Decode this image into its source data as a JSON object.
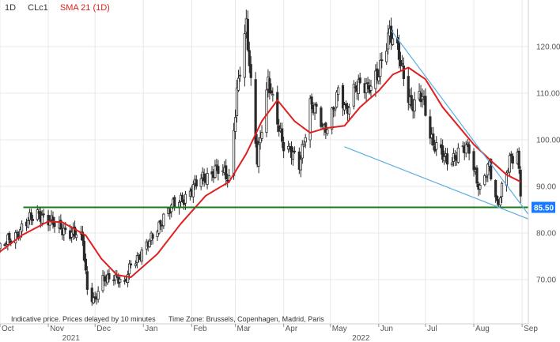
{
  "legend": {
    "interval": "1D",
    "symbol": "CLc1",
    "sma_label": "SMA 21 (1D)"
  },
  "footnote": {
    "delay": "Indicative price. Prices delayed by 10 minutes",
    "timezone": "Time Zone: Brussels, Copenhagen, Madrid, Paris"
  },
  "colors": {
    "up": "#2a2a2a",
    "down": "#2a2a2a",
    "sma": "#e02020",
    "support": "#1a7a1a",
    "support_badge": "#1a7aff",
    "trendline": "#5aaee0",
    "grid": "#e8e8e8"
  },
  "chart_data": {
    "type": "candlestick",
    "symbol": "CLc1",
    "interval": "1D",
    "x_axis": {
      "month_ticks": [
        {
          "label": "Oct",
          "date": "2021-10-01"
        },
        {
          "label": "Nov",
          "date": "2021-11-01"
        },
        {
          "label": "Dec",
          "date": "2021-12-01"
        },
        {
          "label": "Jan",
          "date": "2022-01-01"
        },
        {
          "label": "Feb",
          "date": "2022-02-01"
        },
        {
          "label": "Mar",
          "date": "2022-03-01"
        },
        {
          "label": "Apr",
          "date": "2022-04-01"
        },
        {
          "label": "May",
          "date": "2022-05-01"
        },
        {
          "label": "Jun",
          "date": "2022-06-01"
        },
        {
          "label": "Jul",
          "date": "2022-07-01"
        },
        {
          "label": "Aug",
          "date": "2022-08-01"
        },
        {
          "label": "Sep",
          "date": "2022-09-01"
        }
      ],
      "year_ticks": [
        {
          "label": "2021",
          "date": "2021-11-15"
        },
        {
          "label": "2022",
          "date": "2022-05-20"
        }
      ],
      "range": [
        "2021-10-01",
        "2022-09-05"
      ]
    },
    "y_axis": {
      "ticks": [
        70,
        80,
        90,
        100,
        110,
        120
      ],
      "tick_labels": [
        "70.00",
        "80.00",
        "90.00",
        "100.00",
        "110.00",
        "120.00"
      ],
      "range": [
        60.5,
        130
      ],
      "position": "right"
    },
    "grid": true,
    "close_anchors": [
      [
        "2021-10-01",
        76.5
      ],
      [
        "2021-10-13",
        80.5
      ],
      [
        "2021-10-26",
        84.5
      ],
      [
        "2021-11-05",
        81.5
      ],
      [
        "2021-11-12",
        80.8
      ],
      [
        "2021-11-23",
        78.5
      ],
      [
        "2021-11-26",
        68.2
      ],
      [
        "2021-12-01",
        65.5
      ],
      [
        "2021-12-06",
        69.5
      ],
      [
        "2021-12-13",
        71.3
      ],
      [
        "2021-12-20",
        68.5
      ],
      [
        "2021-12-24",
        73.5
      ],
      [
        "2022-01-05",
        77.8
      ],
      [
        "2022-01-14",
        83.8
      ],
      [
        "2022-01-26",
        87.4
      ],
      [
        "2022-02-07",
        91.3
      ],
      [
        "2022-02-16",
        93.8
      ],
      [
        "2022-02-25",
        91.6
      ],
      [
        "2022-03-02",
        110.6
      ],
      [
        "2022-03-08",
        123.7
      ],
      [
        "2022-03-15",
        96.4
      ],
      [
        "2022-03-22",
        111.8
      ],
      [
        "2022-04-01",
        99.3
      ],
      [
        "2022-04-11",
        94.3
      ],
      [
        "2022-04-18",
        108.2
      ],
      [
        "2022-04-27",
        102.0
      ],
      [
        "2022-05-06",
        109.8
      ],
      [
        "2022-05-11",
        105.7
      ],
      [
        "2022-05-17",
        112.4
      ],
      [
        "2022-05-25",
        110.3
      ],
      [
        "2022-06-01",
        115.3
      ],
      [
        "2022-06-08",
        122.1
      ],
      [
        "2022-06-14",
        118.9
      ],
      [
        "2022-06-22",
        106.2
      ],
      [
        "2022-06-29",
        110.0
      ],
      [
        "2022-07-06",
        98.5
      ],
      [
        "2022-07-13",
        96.3
      ],
      [
        "2022-07-21",
        96.4
      ],
      [
        "2022-07-29",
        98.6
      ],
      [
        "2022-08-05",
        89.0
      ],
      [
        "2022-08-11",
        94.3
      ],
      [
        "2022-08-16",
        86.5
      ],
      [
        "2022-08-24",
        95.0
      ],
      [
        "2022-08-29",
        97.0
      ],
      [
        "2022-08-31",
        89.5
      ]
    ],
    "sma_21": [
      [
        "2021-10-01",
        76.0
      ],
      [
        "2021-10-15",
        79.5
      ],
      [
        "2021-11-01",
        82.5
      ],
      [
        "2021-11-10",
        82.3
      ],
      [
        "2021-11-25",
        79.5
      ],
      [
        "2021-12-05",
        74.5
      ],
      [
        "2021-12-15",
        71.0
      ],
      [
        "2021-12-24",
        70.5
      ],
      [
        "2022-01-10",
        75.5
      ],
      [
        "2022-01-25",
        82.0
      ],
      [
        "2022-02-10",
        88.0
      ],
      [
        "2022-02-25",
        91.0
      ],
      [
        "2022-03-08",
        97.0
      ],
      [
        "2022-03-18",
        104.0
      ],
      [
        "2022-03-28",
        108.5
      ],
      [
        "2022-04-08",
        104.0
      ],
      [
        "2022-04-18",
        101.5
      ],
      [
        "2022-04-28",
        102.5
      ],
      [
        "2022-05-10",
        103.0
      ],
      [
        "2022-05-20",
        107.0
      ],
      [
        "2022-06-01",
        110.5
      ],
      [
        "2022-06-10",
        114.0
      ],
      [
        "2022-06-20",
        115.5
      ],
      [
        "2022-07-01",
        113.0
      ],
      [
        "2022-07-12",
        107.0
      ],
      [
        "2022-07-22",
        103.0
      ],
      [
        "2022-08-01",
        99.0
      ],
      [
        "2022-08-12",
        95.5
      ],
      [
        "2022-08-22",
        92.5
      ],
      [
        "2022-08-31",
        91.0
      ]
    ],
    "support_line": {
      "value": 85.5,
      "label": "85.50",
      "from": "2021-10-16",
      "to": "2022-09-05"
    },
    "trendlines": [
      {
        "from": [
          "2022-06-09",
          123.5
        ],
        "to": [
          "2022-09-05",
          84.0
        ]
      },
      {
        "from": [
          "2022-05-10",
          98.5
        ],
        "to": [
          "2022-09-05",
          83.0
        ]
      }
    ]
  }
}
